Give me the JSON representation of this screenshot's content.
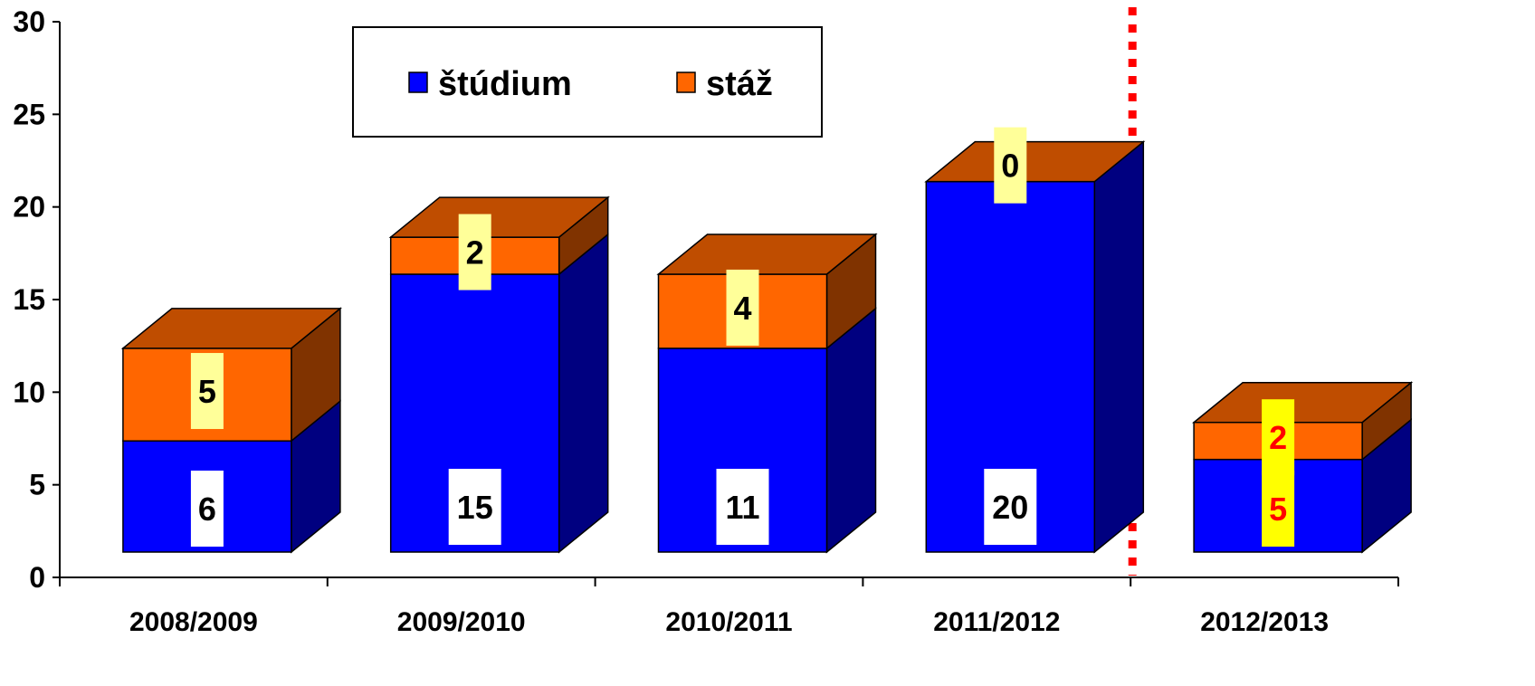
{
  "chart_data": {
    "type": "bar",
    "stacked": true,
    "three_d": true,
    "categories": [
      "2008/2009",
      "2009/2010",
      "2010/2011",
      "2011/2012",
      "2012/2013"
    ],
    "series": [
      {
        "name": "štúdium",
        "values": [
          6,
          15,
          11,
          20,
          5
        ],
        "color": "#0000ff"
      },
      {
        "name": "stáž",
        "values": [
          5,
          2,
          4,
          0,
          2
        ],
        "color": "#ff6600"
      }
    ],
    "ylim": [
      0,
      30
    ],
    "yticks": [
      "0",
      "5",
      "10",
      "15",
      "20",
      "25",
      "30"
    ],
    "legend_placement": "top-center",
    "grid": false,
    "separator_before_category": "2012/2013",
    "separator_color": "#ff0000",
    "label_styles": [
      {
        "bg": "#ffffff",
        "fg": "#000000"
      },
      {
        "bg": "#ffff99",
        "fg": "#000000"
      }
    ],
    "highlight_category": "2012/2013",
    "highlight_label_style": {
      "bg": "#ffff00",
      "fg": "#ff0000"
    }
  }
}
